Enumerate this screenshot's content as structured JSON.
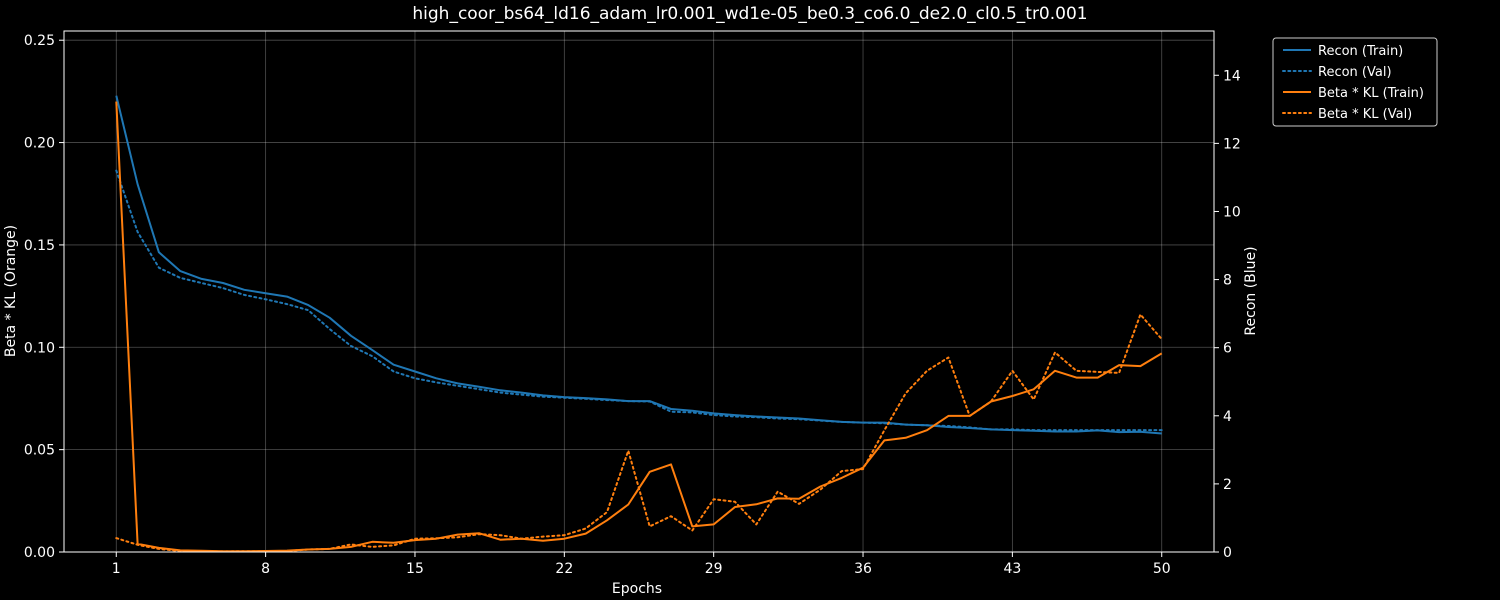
{
  "chart_data": {
    "type": "line",
    "title": "high_coor_bs64_ld16_adam_lr0.001_wd1e-05_be0.3_co6.0_de2.0_cl0.5_tr0.001",
    "xlabel": "Epochs",
    "ylabel_left": "Beta * KL (Orange)",
    "ylabel_right": "Recon (Blue)",
    "xlim": [
      -1.45,
      52.45
    ],
    "ylim_left": [
      0,
      0.2545
    ],
    "ylim_right": [
      0,
      15.3
    ],
    "xticks": [
      1,
      8,
      15,
      22,
      29,
      36,
      43,
      50
    ],
    "yticks_left": [
      {
        "value": 0.0,
        "label": "0.00"
      },
      {
        "value": 0.05,
        "label": "0.05"
      },
      {
        "value": 0.1,
        "label": "0.10"
      },
      {
        "value": 0.15,
        "label": "0.15"
      },
      {
        "value": 0.2,
        "label": "0.20"
      },
      {
        "value": 0.25,
        "label": "0.25"
      }
    ],
    "yticks_right": [
      {
        "value": 0,
        "label": "0"
      },
      {
        "value": 2,
        "label": "2"
      },
      {
        "value": 4,
        "label": "4"
      },
      {
        "value": 6,
        "label": "6"
      },
      {
        "value": 8,
        "label": "8"
      },
      {
        "value": 10,
        "label": "10"
      },
      {
        "value": 12,
        "label": "12"
      },
      {
        "value": 14,
        "label": "14"
      }
    ],
    "grid": true,
    "legend_position": "outside-top-right",
    "x": [
      1,
      2,
      3,
      4,
      5,
      6,
      7,
      8,
      9,
      10,
      11,
      12,
      13,
      14,
      15,
      16,
      17,
      18,
      19,
      20,
      21,
      22,
      23,
      24,
      25,
      26,
      27,
      28,
      29,
      30,
      31,
      32,
      33,
      34,
      35,
      36,
      37,
      38,
      39,
      40,
      41,
      42,
      43,
      44,
      45,
      46,
      47,
      48,
      49,
      50
    ],
    "series": [
      {
        "name": "Recon (Train)",
        "axis": "right",
        "color": "#1f77b4",
        "style": "solid",
        "values": [
          13.4,
          10.8,
          8.8,
          8.25,
          8.02,
          7.9,
          7.7,
          7.6,
          7.5,
          7.25,
          6.88,
          6.35,
          5.93,
          5.5,
          5.3,
          5.1,
          4.95,
          4.85,
          4.75,
          4.68,
          4.6,
          4.55,
          4.52,
          4.48,
          4.43,
          4.43,
          4.2,
          4.15,
          4.07,
          4.02,
          3.98,
          3.95,
          3.92,
          3.87,
          3.82,
          3.8,
          3.8,
          3.74,
          3.72,
          3.67,
          3.64,
          3.6,
          3.58,
          3.56,
          3.54,
          3.54,
          3.57,
          3.52,
          3.53,
          3.48
        ]
      },
      {
        "name": "Recon (Val)",
        "axis": "right",
        "color": "#1f77b4",
        "style": "dotted",
        "values": [
          11.2,
          9.4,
          8.35,
          8.05,
          7.9,
          7.75,
          7.55,
          7.42,
          7.28,
          7.1,
          6.55,
          6.05,
          5.75,
          5.3,
          5.1,
          4.98,
          4.88,
          4.78,
          4.68,
          4.62,
          4.56,
          4.53,
          4.5,
          4.46,
          4.43,
          4.42,
          4.12,
          4.1,
          4.02,
          3.98,
          3.96,
          3.92,
          3.9,
          3.86,
          3.82,
          3.8,
          3.78,
          3.74,
          3.72,
          3.7,
          3.66,
          3.6,
          3.6,
          3.58,
          3.58,
          3.58,
          3.58,
          3.58,
          3.58,
          3.58
        ]
      },
      {
        "name": "Beta * KL (Train)",
        "axis": "left",
        "color": "#ff7f0e",
        "style": "solid",
        "values": [
          0.22,
          0.004,
          0.002,
          0.0008,
          0.0006,
          0.0004,
          0.0004,
          0.0005,
          0.0007,
          0.0012,
          0.0015,
          0.0025,
          0.005,
          0.0045,
          0.0058,
          0.0065,
          0.0085,
          0.0092,
          0.006,
          0.0065,
          0.0055,
          0.0065,
          0.009,
          0.0155,
          0.0232,
          0.0392,
          0.0428,
          0.0125,
          0.0135,
          0.022,
          0.0233,
          0.0262,
          0.026,
          0.032,
          0.0362,
          0.0412,
          0.0545,
          0.0558,
          0.0595,
          0.0665,
          0.0665,
          0.0735,
          0.0762,
          0.0795,
          0.0885,
          0.0852,
          0.0852,
          0.0913,
          0.0908,
          0.097
        ]
      },
      {
        "name": "Beta * KL (Val)",
        "axis": "left",
        "color": "#ff7f0e",
        "style": "dotted",
        "values": [
          0.0068,
          0.0035,
          0.0015,
          0.0005,
          0.0004,
          0.0003,
          0.0004,
          0.0004,
          0.0005,
          0.0012,
          0.0015,
          0.0037,
          0.0025,
          0.0032,
          0.0065,
          0.0067,
          0.0072,
          0.0087,
          0.0082,
          0.0065,
          0.0075,
          0.0082,
          0.0115,
          0.0195,
          0.0495,
          0.0125,
          0.0175,
          0.0105,
          0.0258,
          0.0245,
          0.0135,
          0.0295,
          0.0235,
          0.0305,
          0.0395,
          0.0405,
          0.0595,
          0.0775,
          0.0885,
          0.095,
          0.0665,
          0.0735,
          0.0885,
          0.0745,
          0.0975,
          0.0885,
          0.088,
          0.0875,
          0.116,
          0.104
        ]
      }
    ]
  }
}
